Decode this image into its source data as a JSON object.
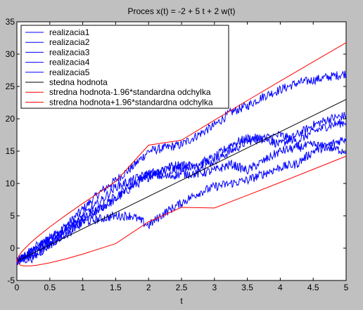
{
  "chart_data": {
    "type": "line",
    "title": "Proces  x(t) = -2 + 5 t + 2 w(t)",
    "xlabel": "t",
    "ylabel": "",
    "xlim": [
      0,
      5
    ],
    "ylim": [
      -5,
      35
    ],
    "xticks": [
      0,
      0.5,
      1,
      1.5,
      2,
      2.5,
      3,
      3.5,
      4,
      4.5,
      5
    ],
    "xtick_labels": [
      "0",
      "0.5",
      "1",
      "1.5",
      "2",
      "2.5",
      "3",
      "3.5",
      "4",
      "4.5",
      "5"
    ],
    "yticks": [
      -5,
      0,
      5,
      10,
      15,
      20,
      25,
      30,
      35
    ],
    "ytick_labels": [
      "-5",
      "0",
      "5",
      "10",
      "15",
      "20",
      "25",
      "30",
      "35"
    ],
    "grid": false,
    "legend_position": "top-left",
    "colors": {
      "axes_background": "#ffffff",
      "figure_background": "#c0c0c0",
      "realization": "#0000ff",
      "mean": "#000000",
      "bounds": "#ff0000"
    },
    "series": [
      {
        "name": "realizacia1",
        "style": "noisy",
        "x": [
          0,
          0.25,
          0.5,
          0.75,
          1,
          1.25,
          1.5,
          1.75,
          2,
          2.25,
          2.5,
          2.75,
          3,
          3.25,
          3.5,
          3.75,
          4,
          4.25,
          4.5,
          4.75,
          5
        ],
        "values": [
          -2,
          -0.5,
          1.5,
          3.5,
          6,
          8.5,
          10.5,
          12.5,
          15,
          15.5,
          16,
          17.5,
          19,
          21,
          22,
          23.5,
          24.5,
          25.5,
          26,
          26.5,
          27
        ]
      },
      {
        "name": "realizacia2",
        "style": "noisy",
        "x": [
          0,
          0.25,
          0.5,
          0.75,
          1,
          1.25,
          1.5,
          1.75,
          2,
          2.25,
          2.5,
          2.75,
          3,
          3.25,
          3.5,
          3.75,
          4,
          4.25,
          4.5,
          4.75,
          5
        ],
        "values": [
          -2,
          -1,
          0.5,
          2,
          4,
          6,
          7.5,
          9.5,
          11,
          12.5,
          13,
          12.5,
          13.5,
          15,
          16.5,
          17,
          16,
          17.5,
          19,
          20,
          20.5
        ]
      },
      {
        "name": "realizacia3",
        "style": "noisy",
        "x": [
          0,
          0.25,
          0.5,
          0.75,
          1,
          1.25,
          1.5,
          1.75,
          2,
          2.25,
          2.5,
          2.75,
          3,
          3.25,
          3.5,
          3.75,
          4,
          4.25,
          4.5,
          4.75,
          5
        ],
        "values": [
          -2,
          -0.5,
          1,
          3,
          4.5,
          6,
          8,
          10,
          11.5,
          12,
          12.5,
          13,
          14,
          16,
          17,
          17,
          17.5,
          16.5,
          18,
          19,
          19.5
        ]
      },
      {
        "name": "realizacia4",
        "style": "noisy",
        "x": [
          0,
          0.25,
          0.5,
          0.75,
          1,
          1.25,
          1.5,
          1.75,
          2,
          2.25,
          2.5,
          2.75,
          3,
          3.25,
          3.5,
          3.75,
          4,
          4.25,
          4.5,
          4.75,
          5
        ],
        "values": [
          -2,
          -1.5,
          0.5,
          2.5,
          4,
          4.5,
          5,
          5,
          3.5,
          5.5,
          7,
          8.5,
          9.5,
          10,
          10.5,
          11.5,
          12.5,
          13,
          15,
          16,
          17
        ]
      },
      {
        "name": "realizacia5",
        "style": "noisy",
        "x": [
          0,
          0.25,
          0.5,
          0.75,
          1,
          1.25,
          1.5,
          1.75,
          2,
          2.25,
          2.5,
          2.75,
          3,
          3.25,
          3.5,
          3.75,
          4,
          4.25,
          4.5,
          4.75,
          5
        ],
        "values": [
          -2,
          0,
          1.5,
          3,
          5,
          7,
          9.5,
          10.5,
          11.5,
          11,
          11.5,
          11.5,
          12,
          13,
          12,
          13.5,
          15,
          15.5,
          16,
          15.5,
          15
        ]
      },
      {
        "name": "stedna hodnota",
        "style": "smooth",
        "x": [
          0,
          0.25,
          0.5,
          0.75,
          1,
          1.25,
          1.5,
          1.75,
          2,
          2.25,
          2.5,
          2.75,
          3,
          3.25,
          3.5,
          3.75,
          4,
          4.25,
          4.5,
          4.75,
          5
        ],
        "values": [
          -2,
          -0.75,
          0.5,
          1.75,
          3,
          4.25,
          5.5,
          6.75,
          8,
          9.25,
          10.5,
          11.75,
          13,
          14.25,
          15.5,
          16.75,
          18,
          19.25,
          20.5,
          21.75,
          23
        ]
      },
      {
        "name": "stredna hodnota-1.96*standardna odchylka",
        "style": "smooth",
        "x": [
          0,
          0.05,
          0.1,
          0.2,
          0.3,
          0.5,
          0.75,
          1,
          1.5,
          2,
          2.5,
          3,
          3.5,
          4,
          4.5,
          5
        ],
        "values": [
          -2,
          -2.63,
          -2.74,
          -2.75,
          -2.65,
          -2.27,
          -1.64,
          -0.92,
          0.7,
          4.08,
          6.3,
          6.21,
          8.17,
          10.16,
          12.18,
          14.23
        ]
      },
      {
        "name": "stredna hodnota+1.96*standardna odchylka",
        "style": "smooth",
        "x": [
          0,
          0.05,
          0.1,
          0.2,
          0.3,
          0.5,
          0.75,
          1,
          1.5,
          2,
          2.5,
          3,
          3.5,
          4,
          4.5,
          5
        ],
        "values": [
          -2,
          -0.87,
          -0.26,
          0.75,
          1.65,
          3.27,
          5.14,
          6.92,
          10.3,
          15.92,
          16.7,
          19.79,
          22.83,
          25.84,
          28.82,
          31.77
        ]
      }
    ]
  }
}
